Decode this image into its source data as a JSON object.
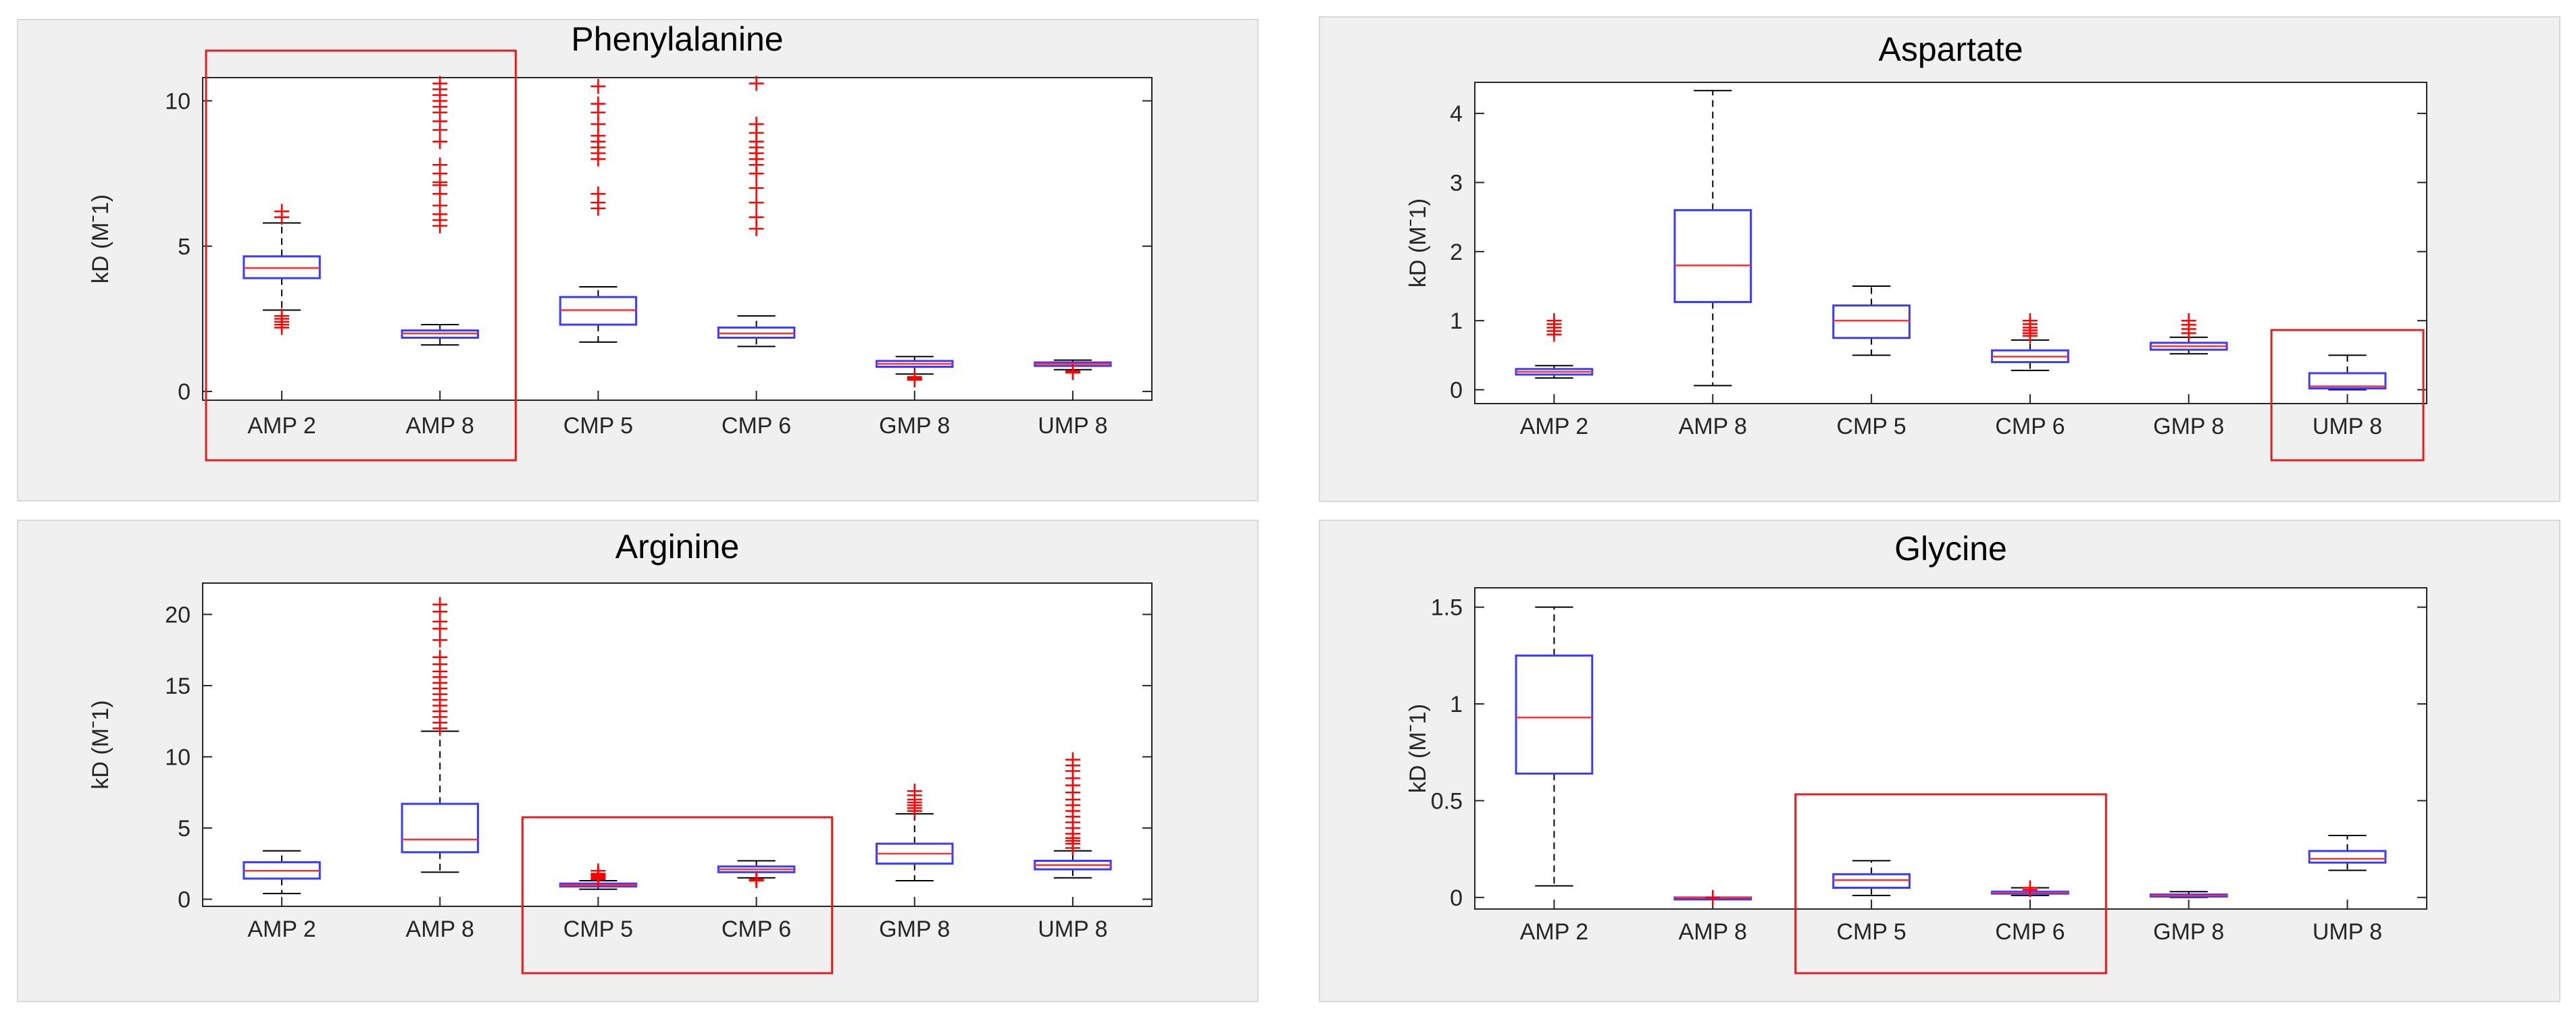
{
  "chart_data": [
    {
      "type": "box",
      "title": "Phenylalanine",
      "ylabel": "kD (Mˉ1)",
      "categories": [
        "AMP 2",
        "AMP 8",
        "CMP 5",
        "CMP 6",
        "GMP 8",
        "UMP 8"
      ],
      "ylim": [
        -0.3,
        10.8
      ],
      "yticks": [
        0,
        5,
        10
      ],
      "boxes": [
        {
          "whisker_low": 2.8,
          "q1": 3.9,
          "median": 4.25,
          "q3": 4.65,
          "whisker_high": 5.8,
          "outliers": [
            2.2,
            2.3,
            2.4,
            2.5,
            2.6,
            6.0,
            6.2
          ]
        },
        {
          "whisker_low": 1.6,
          "q1": 1.85,
          "median": 2.0,
          "q3": 2.1,
          "whisker_high": 2.3,
          "outliers": [
            5.7,
            5.9,
            6.1,
            6.4,
            6.8,
            7.1,
            7.2,
            7.5,
            7.8,
            8.6,
            9.0,
            9.3,
            9.6,
            9.8,
            10.0,
            10.2,
            10.4,
            10.6
          ]
        },
        {
          "whisker_low": 1.7,
          "q1": 2.3,
          "median": 2.8,
          "q3": 3.25,
          "whisker_high": 3.6,
          "outliers": [
            6.3,
            6.5,
            6.8,
            8.0,
            8.2,
            8.4,
            8.6,
            8.8,
            9.2,
            9.6,
            9.9,
            10.5
          ]
        },
        {
          "whisker_low": 1.55,
          "q1": 1.85,
          "median": 2.0,
          "q3": 2.2,
          "whisker_high": 2.6,
          "outliers": [
            5.6,
            6.0,
            6.5,
            7.0,
            7.5,
            7.8,
            8.0,
            8.2,
            8.4,
            8.6,
            8.9,
            9.2,
            10.6
          ]
        },
        {
          "whisker_low": 0.6,
          "q1": 0.85,
          "median": 0.95,
          "q3": 1.05,
          "whisker_high": 1.2,
          "outliers": [
            0.4,
            0.45,
            0.5
          ]
        },
        {
          "whisker_low": 0.75,
          "q1": 0.88,
          "median": 0.95,
          "q3": 1.0,
          "whisker_high": 1.08,
          "outliers": [
            0.65,
            0.7
          ]
        }
      ]
    },
    {
      "type": "box",
      "title": "Aspartate",
      "ylabel": "kD (Mˉ1)",
      "categories": [
        "AMP 2",
        "AMP 8",
        "CMP 5",
        "CMP 6",
        "GMP 8",
        "UMP 8"
      ],
      "ylim": [
        -0.2,
        4.45
      ],
      "yticks": [
        0,
        1,
        2,
        3,
        4
      ],
      "boxes": [
        {
          "whisker_low": 0.17,
          "q1": 0.22,
          "median": 0.26,
          "q3": 0.3,
          "whisker_high": 0.35,
          "outliers": [
            0.8,
            0.85,
            0.9,
            0.95,
            1.0
          ]
        },
        {
          "whisker_low": 0.06,
          "q1": 1.27,
          "median": 1.8,
          "q3": 2.6,
          "whisker_high": 4.33,
          "outliers": []
        },
        {
          "whisker_low": 0.5,
          "q1": 0.75,
          "median": 1.0,
          "q3": 1.22,
          "whisker_high": 1.5,
          "outliers": []
        },
        {
          "whisker_low": 0.28,
          "q1": 0.4,
          "median": 0.48,
          "q3": 0.57,
          "whisker_high": 0.72,
          "outliers": [
            0.78,
            0.82,
            0.86,
            0.9,
            0.95,
            1.0
          ]
        },
        {
          "whisker_low": 0.52,
          "q1": 0.58,
          "median": 0.63,
          "q3": 0.68,
          "whisker_high": 0.76,
          "outliers": [
            0.82,
            0.88,
            0.94,
            1.0
          ]
        },
        {
          "whisker_low": 0.0,
          "q1": 0.02,
          "median": 0.05,
          "q3": 0.24,
          "whisker_high": 0.5,
          "outliers": []
        }
      ]
    },
    {
      "type": "box",
      "title": "Arginine",
      "ylabel": "kD (Mˉ1)",
      "categories": [
        "AMP 2",
        "AMP 8",
        "CMP 5",
        "CMP 6",
        "GMP 8",
        "UMP 8"
      ],
      "ylim": [
        -0.5,
        22.2
      ],
      "yticks": [
        0,
        5,
        10,
        15,
        20
      ],
      "boxes": [
        {
          "whisker_low": 0.4,
          "q1": 1.45,
          "median": 2.0,
          "q3": 2.6,
          "whisker_high": 3.4,
          "outliers": []
        },
        {
          "whisker_low": 1.9,
          "q1": 3.3,
          "median": 4.2,
          "q3": 6.7,
          "whisker_high": 11.8,
          "outliers": [
            12.0,
            12.4,
            12.8,
            13.2,
            13.6,
            14.0,
            14.4,
            14.8,
            15.2,
            15.6,
            16.0,
            16.5,
            17.0,
            18.2,
            19.0,
            19.5,
            20.2,
            20.7
          ]
        },
        {
          "whisker_low": 0.7,
          "q1": 0.9,
          "median": 1.0,
          "q3": 1.1,
          "whisker_high": 1.3,
          "outliers": [
            1.4,
            1.5,
            1.6,
            1.7,
            1.8,
            2.0
          ]
        },
        {
          "whisker_low": 1.5,
          "q1": 1.9,
          "median": 2.1,
          "q3": 2.3,
          "whisker_high": 2.7,
          "outliers": [
            1.3,
            1.4
          ]
        },
        {
          "whisker_low": 1.3,
          "q1": 2.5,
          "median": 3.2,
          "q3": 3.9,
          "whisker_high": 6.0,
          "outliers": [
            6.2,
            6.4,
            6.6,
            6.8,
            7.0,
            7.3,
            7.6
          ]
        },
        {
          "whisker_low": 1.5,
          "q1": 2.1,
          "median": 2.4,
          "q3": 2.7,
          "whisker_high": 3.4,
          "outliers": [
            3.6,
            3.9,
            4.1,
            4.3,
            4.6,
            5.0,
            5.4,
            5.8,
            6.2,
            6.6,
            7.0,
            7.5,
            8.0,
            8.5,
            9.0,
            9.4,
            9.8
          ]
        }
      ]
    },
    {
      "type": "box",
      "title": "Glycine",
      "ylabel": "kD (Mˉ1)",
      "categories": [
        "AMP 2",
        "AMP 8",
        "CMP 5",
        "CMP 6",
        "GMP 8",
        "UMP 8"
      ],
      "ylim": [
        -0.06,
        1.6
      ],
      "yticks": [
        0,
        0.5,
        1,
        1.5
      ],
      "boxes": [
        {
          "whisker_low": 0.06,
          "q1": 0.64,
          "median": 0.93,
          "q3": 1.25,
          "whisker_high": 1.5,
          "outliers": []
        },
        {
          "whisker_low": 0.0,
          "q1": 0.0,
          "median": 0.0,
          "q3": 0.0,
          "whisker_high": 0.0,
          "outliers": [
            0.0
          ]
        },
        {
          "whisker_low": 0.01,
          "q1": 0.05,
          "median": 0.09,
          "q3": 0.12,
          "whisker_high": 0.19,
          "outliers": []
        },
        {
          "whisker_low": 0.01,
          "q1": 0.02,
          "median": 0.025,
          "q3": 0.03,
          "whisker_high": 0.05,
          "outliers": [
            0.04,
            0.05
          ]
        },
        {
          "whisker_low": 0.0,
          "q1": 0.005,
          "median": 0.01,
          "q3": 0.015,
          "whisker_high": 0.03,
          "outliers": []
        },
        {
          "whisker_low": 0.14,
          "q1": 0.18,
          "median": 0.2,
          "q3": 0.24,
          "whisker_high": 0.32,
          "outliers": []
        }
      ]
    }
  ],
  "highlights": [
    {
      "chart": 0,
      "categories": [
        "AMP 2",
        "AMP 8"
      ]
    },
    {
      "chart": 1,
      "categories": [
        "UMP 8"
      ]
    },
    {
      "chart": 2,
      "categories": [
        "CMP 5",
        "CMP 6"
      ]
    },
    {
      "chart": 3,
      "categories": [
        "CMP 5",
        "CMP 6"
      ]
    }
  ],
  "colors": {
    "box": "#3b3bff",
    "median": "#ff3030",
    "outlier": "#ff0000",
    "whisker": "#000000",
    "highlight": "#e02020",
    "panel_bg": "#f0f0f0"
  }
}
